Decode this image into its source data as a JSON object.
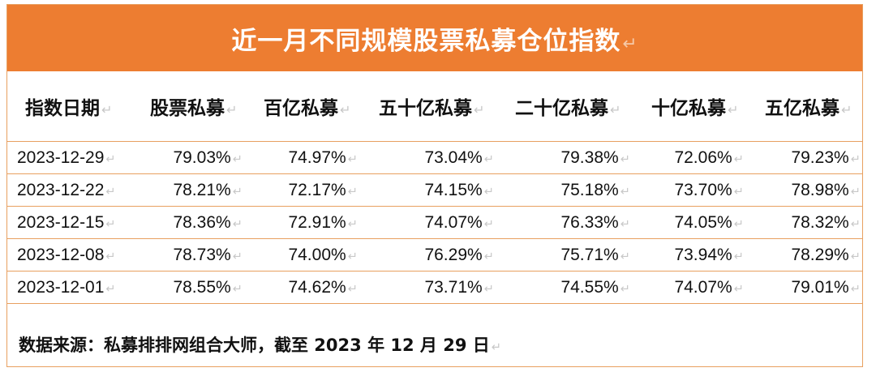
{
  "title": "近一月不同规模股票私募仓位指数",
  "headers": [
    "指数日期",
    "股票私募",
    "百亿私募",
    "五十亿私募",
    "二十亿私募",
    "十亿私募",
    "五亿私募"
  ],
  "rows": [
    [
      "2023-12-29",
      "79.03%",
      "74.97%",
      "73.04%",
      "79.38%",
      "72.06%",
      "79.23%"
    ],
    [
      "2023-12-22",
      "78.21%",
      "72.17%",
      "74.15%",
      "75.18%",
      "73.70%",
      "78.98%"
    ],
    [
      "2023-12-15",
      "78.36%",
      "72.91%",
      "74.07%",
      "76.33%",
      "74.05%",
      "78.32%"
    ],
    [
      "2023-12-08",
      "78.73%",
      "74.00%",
      "76.29%",
      "75.71%",
      "73.94%",
      "78.29%"
    ],
    [
      "2023-12-01",
      "78.55%",
      "74.62%",
      "73.71%",
      "74.55%",
      "74.07%",
      "79.01%"
    ]
  ],
  "source": "数据来源：私募排排网组合大师，截至 2023 年 12 月 29 日",
  "paragraph_mark": "↵",
  "cell_mark": "↵",
  "colors": {
    "title_bg": "#ed7d31",
    "title_text": "#ffffff",
    "border": "#e8a060"
  }
}
